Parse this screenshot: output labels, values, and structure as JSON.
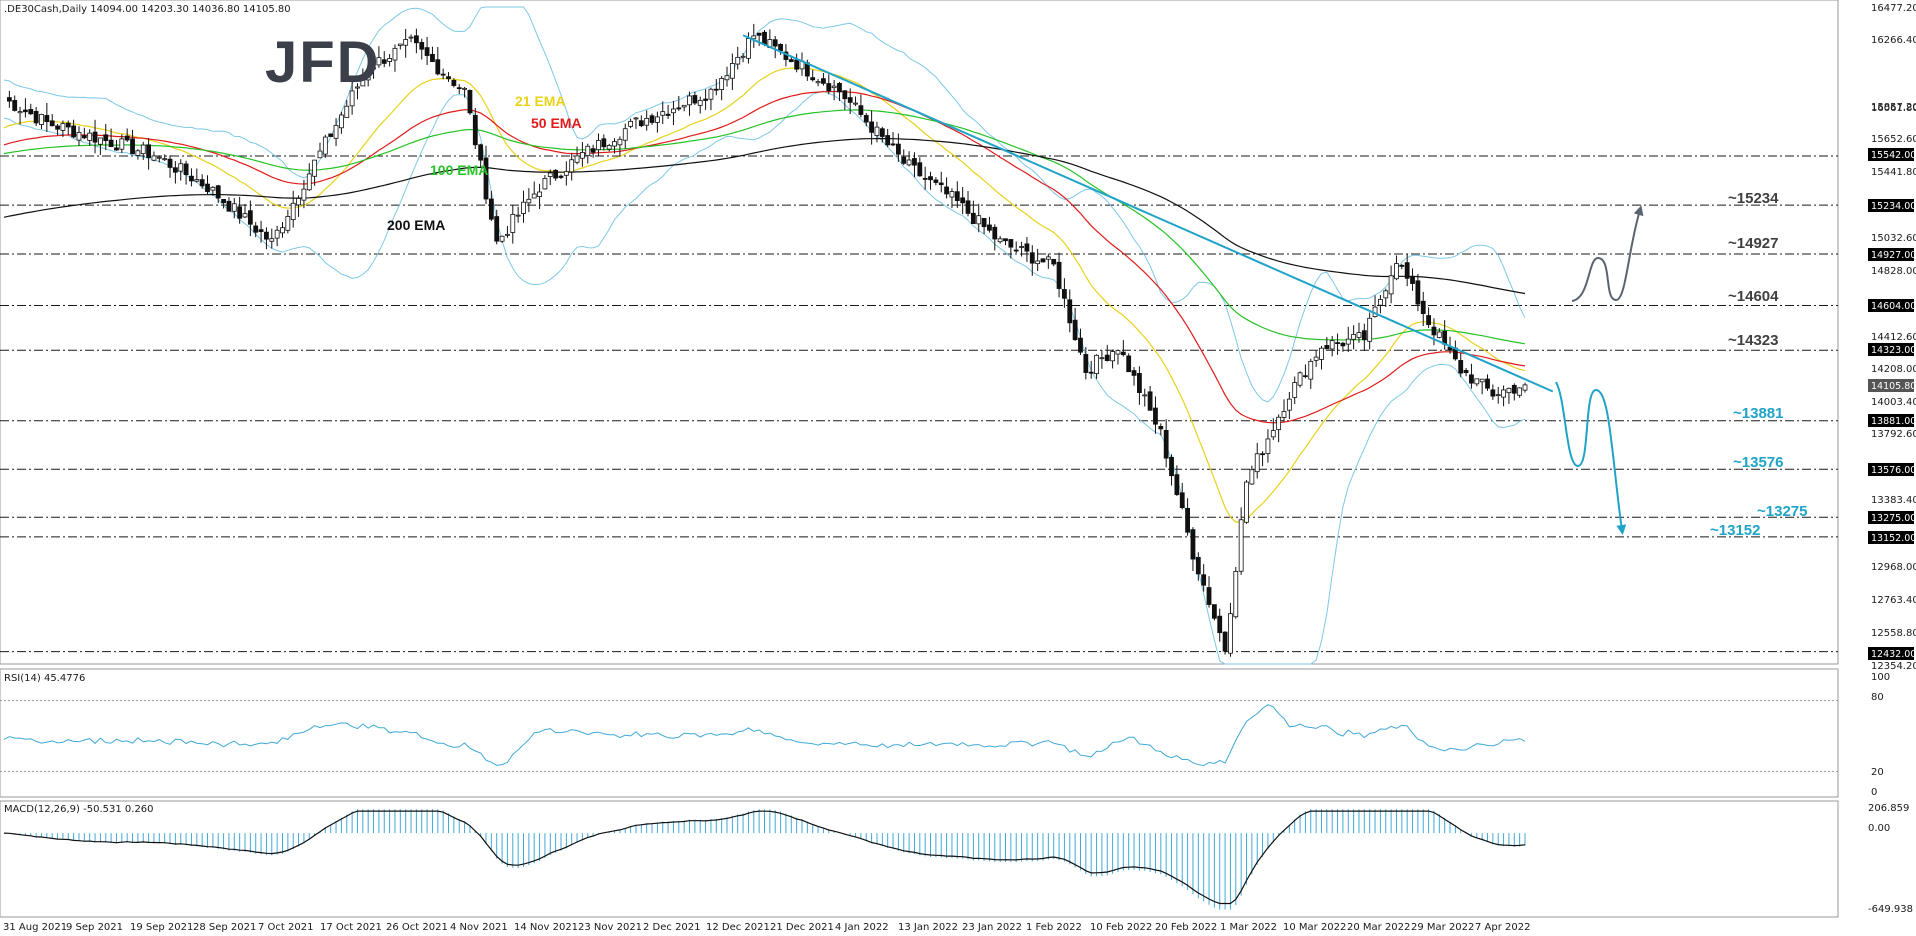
{
  "header": {
    "symbol_line": ".DE30Cash,Daily  14094.00 14203.30 14036.80 14105.80",
    "rsi_label": "RSI(14) 45.4776",
    "macd_label": "MACD(12,26,9) -50.531 0.260"
  },
  "logo": {
    "text": "JFD"
  },
  "ema_labels": [
    {
      "text": "21 EMA",
      "color": "#e8d21a"
    },
    {
      "text": "50 EMA",
      "color": "#e01b1b"
    },
    {
      "text": "100 EMA",
      "color": "#27c227"
    },
    {
      "text": "200 EMA",
      "color": "#111111"
    }
  ],
  "price_axis": {
    "ticks": [
      "16477.20",
      "16266.40",
      "16061.80",
      "15857.20",
      "15652.60",
      "15441.80",
      "15032.60",
      "14828.00",
      "14412.60",
      "14208.00",
      "14003.40",
      "13792.60",
      "13383.40",
      "12968.00",
      "12763.40",
      "12558.80",
      "12354.20"
    ],
    "tagged": [
      {
        "text": "15542.00",
        "dark": true
      },
      {
        "text": "15234.00",
        "dark": true
      },
      {
        "text": "14927.00",
        "dark": true
      },
      {
        "text": "14604.00",
        "dark": true
      },
      {
        "text": "14323.00",
        "dark": true
      },
      {
        "text": "14105.80",
        "dark": false
      },
      {
        "text": "13881.00",
        "dark": true
      },
      {
        "text": "13576.00",
        "dark": true
      },
      {
        "text": "13275.00",
        "dark": true
      },
      {
        "text": "13152.00",
        "dark": true
      },
      {
        "text": "12432.00",
        "dark": true
      }
    ]
  },
  "levels": [
    {
      "text": "~15234",
      "color": "#404040"
    },
    {
      "text": "~14927",
      "color": "#404040"
    },
    {
      "text": "~14604",
      "color": "#404040"
    },
    {
      "text": "~14323",
      "color": "#404040"
    },
    {
      "text": "~13881",
      "color": "#1fa3c8"
    },
    {
      "text": "~13576",
      "color": "#1fa3c8"
    },
    {
      "text": "~13275",
      "color": "#1fa3c8"
    },
    {
      "text": "~13152",
      "color": "#1fa3c8"
    }
  ],
  "rsi_axis": [
    "100",
    "80",
    "20",
    "0"
  ],
  "macd_axis": [
    "206.859",
    "0.00",
    "-649.938"
  ],
  "date_axis": [
    "31 Aug 2021",
    "9 Sep 2021",
    "19 Sep 2021",
    "28 Sep 2021",
    "7 Oct 2021",
    "17 Oct 2021",
    "26 Oct 2021",
    "4 Nov 2021",
    "14 Nov 2021",
    "23 Nov 2021",
    "2 Dec 2021",
    "12 Dec 2021",
    "21 Dec 2021",
    "4 Jan 2022",
    "13 Jan 2022",
    "23 Jan 2022",
    "1 Feb 2022",
    "10 Feb 2022",
    "20 Feb 2022",
    "1 Mar 2022",
    "10 Mar 2022",
    "20 Mar 2022",
    "29 Mar 2022",
    "7 Apr 2022"
  ],
  "colors": {
    "trendline": "#1fa3c8",
    "bull_path": "#5a6370",
    "bear_path": "#1fa3c8",
    "bollinger": "#7ec8e6",
    "candle": "#111111",
    "rsi": "#3fa9d6",
    "macd_hist": "#3fa9d6",
    "macd_line": "#111111"
  },
  "chart_data": {
    "type": "candlestick",
    "symbol": ".DE30Cash",
    "timeframe": "Daily",
    "last_bar": {
      "open": 14094.0,
      "high": 14203.3,
      "low": 14036.8,
      "close": 14105.8
    },
    "ylim": [
      12354.2,
      16477.2
    ],
    "close_path": [
      [
        0,
        15900
      ],
      [
        8,
        15750
      ],
      [
        18,
        15650
      ],
      [
        28,
        15550
      ],
      [
        38,
        15350
      ],
      [
        50,
        15000
      ],
      [
        58,
        15500
      ],
      [
        68,
        16100
      ],
      [
        76,
        16250
      ],
      [
        86,
        15950
      ],
      [
        92,
        15000
      ],
      [
        100,
        15350
      ],
      [
        108,
        15550
      ],
      [
        118,
        15750
      ],
      [
        132,
        15950
      ],
      [
        140,
        16300
      ],
      [
        156,
        15950
      ],
      [
        168,
        15500
      ],
      [
        178,
        15250
      ],
      [
        186,
        15000
      ],
      [
        196,
        14850
      ],
      [
        202,
        14200
      ],
      [
        208,
        14350
      ],
      [
        216,
        13800
      ],
      [
        222,
        13050
      ],
      [
        228,
        12450
      ],
      [
        232,
        13500
      ],
      [
        240,
        14050
      ],
      [
        246,
        14350
      ],
      [
        254,
        14400
      ],
      [
        260,
        14900
      ],
      [
        266,
        14500
      ],
      [
        272,
        14200
      ],
      [
        278,
        14050
      ],
      [
        284,
        14106
      ]
    ],
    "horizontal_levels": [
      15542,
      15234,
      14927,
      14604,
      14323,
      13881,
      13576,
      13275,
      13152,
      12432
    ],
    "trendline": {
      "from": {
        "t": 138,
        "price": 16300
      },
      "to": {
        "t": 278,
        "price": 14230
      }
    },
    "projection_paths": [
      "bullish to ~15234",
      "bearish to ~13152"
    ],
    "rsi": {
      "last": 45.4776,
      "ylim": [
        0,
        100
      ]
    },
    "macd": {
      "fast": 12,
      "slow": 26,
      "signal": 9,
      "main": -50.531,
      "signal_value": 0.26,
      "ylim": [
        -649.938,
        206.859
      ]
    }
  }
}
